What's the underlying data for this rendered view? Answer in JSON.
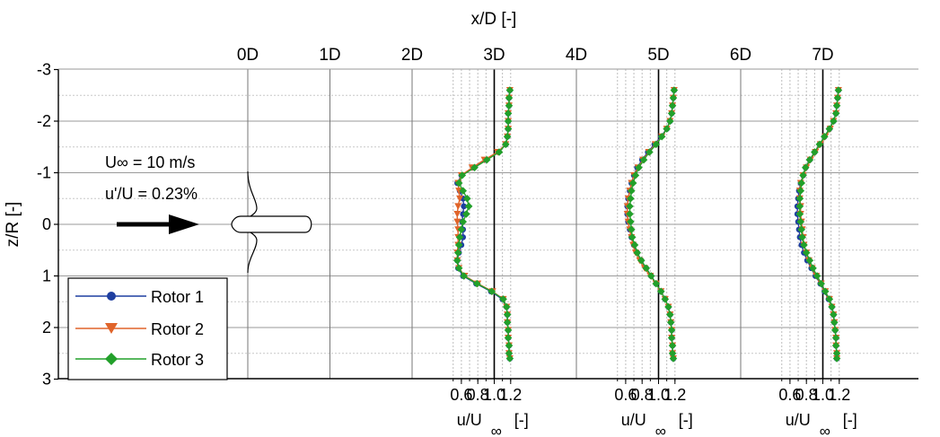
{
  "chart_data": {
    "type": "line",
    "x_axis_top": {
      "label": "x/D [-]",
      "ticks": [
        "0D",
        "1D",
        "2D",
        "3D",
        "4D",
        "5D",
        "6D",
        "7D"
      ],
      "values": [
        0,
        1,
        2,
        3,
        4,
        5,
        6,
        7
      ]
    },
    "y_axis": {
      "label": "z/R [-]",
      "ticks": [
        "-3",
        "-2",
        "-1",
        "0",
        "1",
        "2",
        "3"
      ],
      "range": [
        -3,
        3
      ],
      "inverted": true
    },
    "profile_axes": [
      {
        "station": "3D",
        "ticks": [
          "0.6",
          "0.8",
          "1.0",
          "1.2"
        ],
        "label_main": "u/U",
        "label_sub": "∞",
        "label_unit": "[-]"
      },
      {
        "station": "5D",
        "ticks": [
          "0.6",
          "0.8",
          "1.0",
          "1.2"
        ],
        "label_main": "u/U",
        "label_sub": "∞",
        "label_unit": "[-]"
      },
      {
        "station": "7D",
        "ticks": [
          "0.6",
          "0.8",
          "1.0",
          "1.2"
        ],
        "label_main": "u/U",
        "label_sub": "∞",
        "label_unit": "[-]"
      }
    ],
    "inflow_annotation": {
      "velocity": "U∞ = 10 m/s",
      "turbulence": "u'/U = 0.23%"
    },
    "legend": {
      "placement": "bottom-left"
    },
    "series": [
      {
        "name": "Rotor 1",
        "color": "#1f3fa0",
        "marker": "circle"
      },
      {
        "name": "Rotor 2",
        "color": "#e0642a",
        "marker": "triangle-down"
      },
      {
        "name": "Rotor 3",
        "color": "#22a02a",
        "marker": "diamond"
      }
    ],
    "z_points": [
      -2.6,
      -2.45,
      -2.3,
      -2.15,
      -2.0,
      -1.85,
      -1.7,
      -1.55,
      -1.4,
      -1.25,
      -1.1,
      -0.95,
      -0.8,
      -0.65,
      -0.5,
      -0.35,
      -0.2,
      -0.05,
      0.1,
      0.25,
      0.4,
      0.55,
      0.7,
      0.85,
      1.0,
      1.15,
      1.3,
      1.45,
      1.6,
      1.75,
      1.9,
      2.05,
      2.2,
      2.35,
      2.5,
      2.6
    ],
    "profiles": [
      {
        "station": "3D",
        "Rotor 1": [
          1.19,
          1.18,
          1.18,
          1.17,
          1.17,
          1.17,
          1.16,
          1.14,
          1.05,
          0.9,
          0.75,
          0.6,
          0.55,
          0.58,
          0.62,
          0.63,
          0.62,
          0.61,
          0.62,
          0.62,
          0.6,
          0.57,
          0.55,
          0.56,
          0.62,
          0.78,
          0.96,
          1.1,
          1.15,
          1.16,
          1.16,
          1.17,
          1.17,
          1.18,
          1.18,
          1.19
        ],
        "Rotor 2": [
          1.19,
          1.18,
          1.18,
          1.17,
          1.17,
          1.17,
          1.16,
          1.14,
          1.04,
          0.88,
          0.73,
          0.6,
          0.56,
          0.57,
          0.58,
          0.56,
          0.55,
          0.55,
          0.56,
          0.56,
          0.56,
          0.55,
          0.55,
          0.57,
          0.64,
          0.8,
          0.98,
          1.11,
          1.15,
          1.16,
          1.16,
          1.17,
          1.17,
          1.18,
          1.18,
          1.19
        ],
        "Rotor 3": [
          1.19,
          1.18,
          1.18,
          1.17,
          1.17,
          1.17,
          1.16,
          1.14,
          1.06,
          0.91,
          0.76,
          0.61,
          0.57,
          0.62,
          0.67,
          0.69,
          0.66,
          0.62,
          0.6,
          0.58,
          0.57,
          0.56,
          0.55,
          0.57,
          0.63,
          0.79,
          0.97,
          1.11,
          1.15,
          1.16,
          1.16,
          1.17,
          1.17,
          1.18,
          1.18,
          1.19
        ]
      },
      {
        "station": "5D",
        "Rotor 1": [
          1.19,
          1.18,
          1.17,
          1.16,
          1.14,
          1.1,
          1.03,
          0.95,
          0.87,
          0.8,
          0.74,
          0.7,
          0.67,
          0.65,
          0.63,
          0.62,
          0.62,
          0.63,
          0.65,
          0.67,
          0.7,
          0.74,
          0.79,
          0.85,
          0.91,
          0.97,
          1.03,
          1.08,
          1.12,
          1.14,
          1.15,
          1.16,
          1.16,
          1.17,
          1.17,
          1.18
        ],
        "Rotor 2": [
          1.19,
          1.18,
          1.17,
          1.16,
          1.14,
          1.1,
          1.04,
          0.96,
          0.88,
          0.81,
          0.75,
          0.7,
          0.67,
          0.65,
          0.63,
          0.62,
          0.62,
          0.63,
          0.65,
          0.67,
          0.69,
          0.72,
          0.77,
          0.83,
          0.9,
          0.97,
          1.03,
          1.08,
          1.12,
          1.14,
          1.15,
          1.16,
          1.16,
          1.17,
          1.17,
          1.18
        ],
        "Rotor 3": [
          1.19,
          1.18,
          1.17,
          1.16,
          1.14,
          1.1,
          1.04,
          0.97,
          0.89,
          0.82,
          0.76,
          0.72,
          0.69,
          0.67,
          0.66,
          0.65,
          0.65,
          0.66,
          0.67,
          0.68,
          0.71,
          0.74,
          0.79,
          0.85,
          0.91,
          0.97,
          1.03,
          1.08,
          1.12,
          1.14,
          1.15,
          1.16,
          1.16,
          1.17,
          1.17,
          1.18
        ]
      },
      {
        "station": "7D",
        "Rotor 1": [
          1.19,
          1.18,
          1.17,
          1.16,
          1.13,
          1.08,
          1.02,
          0.96,
          0.9,
          0.84,
          0.79,
          0.76,
          0.73,
          0.71,
          0.7,
          0.69,
          0.69,
          0.7,
          0.71,
          0.72,
          0.74,
          0.77,
          0.81,
          0.86,
          0.91,
          0.97,
          1.02,
          1.07,
          1.11,
          1.13,
          1.14,
          1.15,
          1.16,
          1.16,
          1.17,
          1.17
        ],
        "Rotor 2": [
          1.19,
          1.18,
          1.17,
          1.16,
          1.13,
          1.09,
          1.03,
          0.97,
          0.91,
          0.85,
          0.8,
          0.76,
          0.73,
          0.72,
          0.72,
          0.73,
          0.73,
          0.74,
          0.75,
          0.76,
          0.77,
          0.8,
          0.83,
          0.87,
          0.92,
          0.98,
          1.03,
          1.08,
          1.11,
          1.13,
          1.14,
          1.15,
          1.16,
          1.16,
          1.17,
          1.17
        ],
        "Rotor 3": [
          1.19,
          1.18,
          1.17,
          1.16,
          1.13,
          1.08,
          1.02,
          0.96,
          0.9,
          0.84,
          0.79,
          0.76,
          0.74,
          0.73,
          0.72,
          0.72,
          0.72,
          0.73,
          0.74,
          0.75,
          0.77,
          0.8,
          0.84,
          0.88,
          0.93,
          0.98,
          1.03,
          1.08,
          1.11,
          1.13,
          1.14,
          1.15,
          1.16,
          1.16,
          1.17,
          1.17
        ]
      }
    ]
  }
}
